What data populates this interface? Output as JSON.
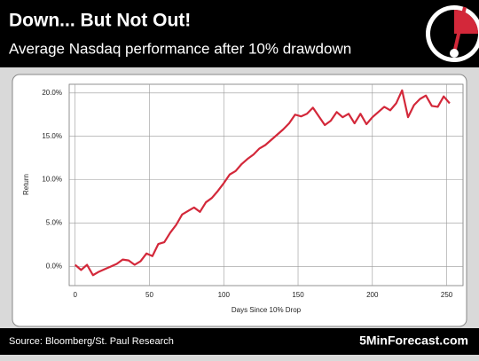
{
  "chart_data": {
    "type": "line",
    "title": "Down... But Not Out!",
    "subtitle": "Average Nasdaq performance after 10% drawdown",
    "x_label": "Days Since 10% Drop",
    "y_label": "Return",
    "source": "Source: Bloomberg/St. Paul Research",
    "brand": "5MinForecast.com",
    "x": [
      0,
      4,
      8,
      12,
      16,
      20,
      24,
      28,
      32,
      36,
      40,
      44,
      48,
      52,
      56,
      60,
      64,
      68,
      72,
      76,
      80,
      84,
      88,
      92,
      96,
      100,
      104,
      108,
      112,
      116,
      120,
      124,
      128,
      132,
      136,
      140,
      144,
      148,
      152,
      156,
      160,
      164,
      168,
      172,
      176,
      180,
      184,
      188,
      192,
      196,
      200,
      204,
      208,
      212,
      216,
      220,
      224,
      228,
      232,
      236,
      240,
      244,
      248,
      252
    ],
    "series": [
      {
        "color": "#d3283a",
        "values": [
          0.2,
          -0.4,
          0.2,
          -1.0,
          -0.6,
          -0.3,
          0.0,
          0.3,
          0.8,
          0.7,
          0.2,
          0.6,
          1.5,
          1.2,
          2.6,
          2.8,
          3.9,
          4.8,
          6.0,
          6.4,
          6.8,
          6.3,
          7.4,
          7.9,
          8.7,
          9.6,
          10.6,
          11.0,
          11.8,
          12.4,
          12.9,
          13.6,
          14.0,
          14.6,
          15.2,
          15.8,
          16.5,
          17.5,
          17.3,
          17.6,
          18.3,
          17.3,
          16.3,
          16.8,
          17.8,
          17.2,
          17.6,
          16.5,
          17.6,
          16.4,
          17.2,
          17.8,
          18.4,
          18.0,
          18.8,
          20.3,
          17.2,
          18.6,
          19.3,
          19.7,
          18.5,
          18.4,
          19.6,
          18.8
        ]
      }
    ],
    "xlim": [
      -4,
      261
    ],
    "ylim": [
      -2.2,
      21
    ],
    "xticks": [
      0,
      50,
      100,
      150,
      200,
      250
    ],
    "yticks": [
      {
        "value": 0,
        "label": "0.0%"
      },
      {
        "value": 5,
        "label": "5.0%"
      },
      {
        "value": 10,
        "label": "10.0%"
      },
      {
        "value": 15,
        "label": "15.0%"
      },
      {
        "value": 20,
        "label": "20.0%"
      }
    ],
    "grid": true
  }
}
